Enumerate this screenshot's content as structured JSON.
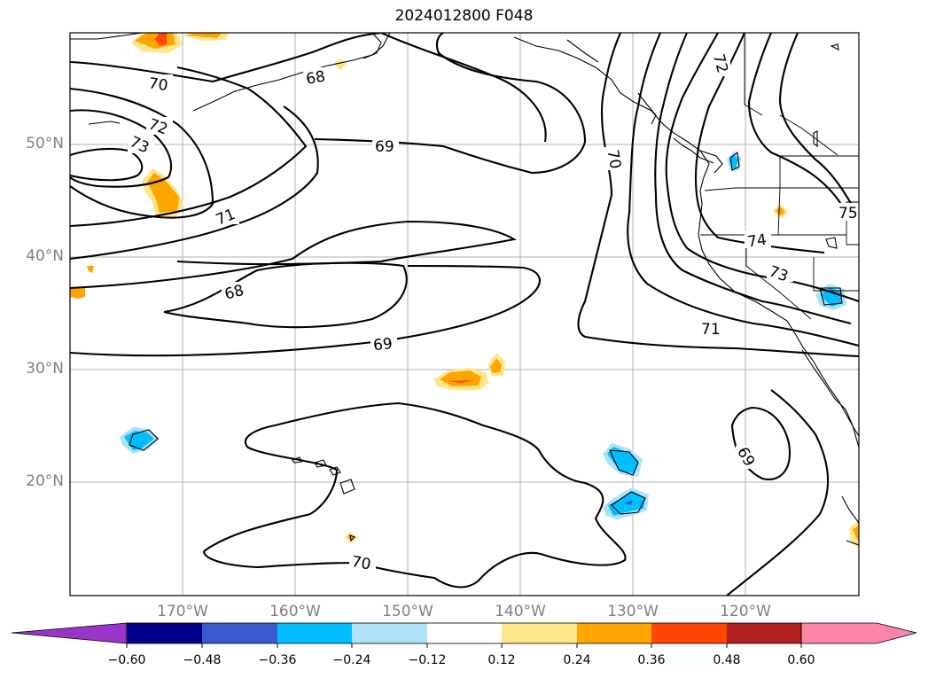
{
  "title": "2024012800 F048",
  "map": {
    "lat_labels": [
      "50°N",
      "40°N",
      "30°N",
      "20°N"
    ],
    "lon_labels": [
      "170°W",
      "160°W",
      "150°W",
      "140°W",
      "130°W",
      "120°W"
    ],
    "extent": {
      "lon_min": -180,
      "lon_max": -110,
      "lat_min": 10,
      "lat_max": 60
    },
    "contour_labels": [
      "70",
      "68",
      "72",
      "73",
      "69",
      "71",
      "68",
      "69",
      "70",
      "70",
      "71",
      "73",
      "74",
      "75",
      "72",
      "69"
    ]
  },
  "colorbar": {
    "ticks": [
      "−0.60",
      "−0.48",
      "−0.36",
      "−0.24",
      "−0.12",
      "0.12",
      "0.24",
      "0.36",
      "0.48",
      "0.60"
    ],
    "colors": [
      "#9a35c9",
      "#00008b",
      "#3a5bcf",
      "#00bfff",
      "#aee2f7",
      "#ffffff",
      "#ffe68a",
      "#ffa500",
      "#ff4500",
      "#b22222",
      "#ff85a8",
      "#ff85a8"
    ]
  }
}
